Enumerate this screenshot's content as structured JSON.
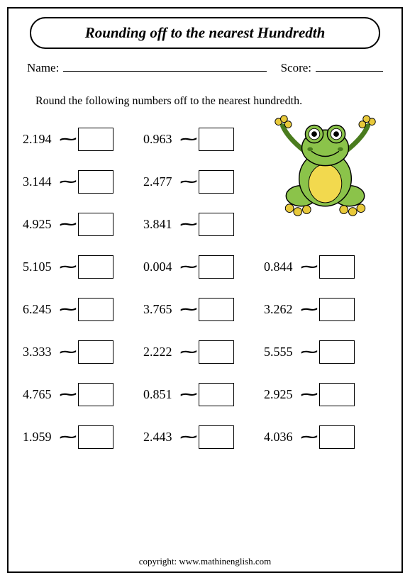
{
  "title": "Rounding off to the nearest Hundredth",
  "name_label": "Name:",
  "score_label": "Score:",
  "instruction": "Round the following numbers off to the nearest hundredth.",
  "rows": [
    {
      "cells": [
        "2.194",
        "0.963",
        null
      ]
    },
    {
      "cells": [
        "3.144",
        "2.477",
        null
      ]
    },
    {
      "cells": [
        "4.925",
        "3.841",
        null
      ]
    },
    {
      "cells": [
        "5.105",
        "0.004",
        "0.844"
      ]
    },
    {
      "cells": [
        "6.245",
        "3.765",
        "3.262"
      ]
    },
    {
      "cells": [
        "3.333",
        "2.222",
        "5.555"
      ]
    },
    {
      "cells": [
        "4.765",
        "0.851",
        "2.925"
      ]
    },
    {
      "cells": [
        "1.959",
        "2.443",
        "4.036"
      ]
    }
  ],
  "copyright": "copyright:   www.mathinenglish.com",
  "colors": {
    "frog_body": "#8bc34a",
    "frog_dark": "#4a7c1e",
    "frog_belly": "#f2d94e",
    "frog_toe": "#e8c93a",
    "outline": "#000000"
  }
}
